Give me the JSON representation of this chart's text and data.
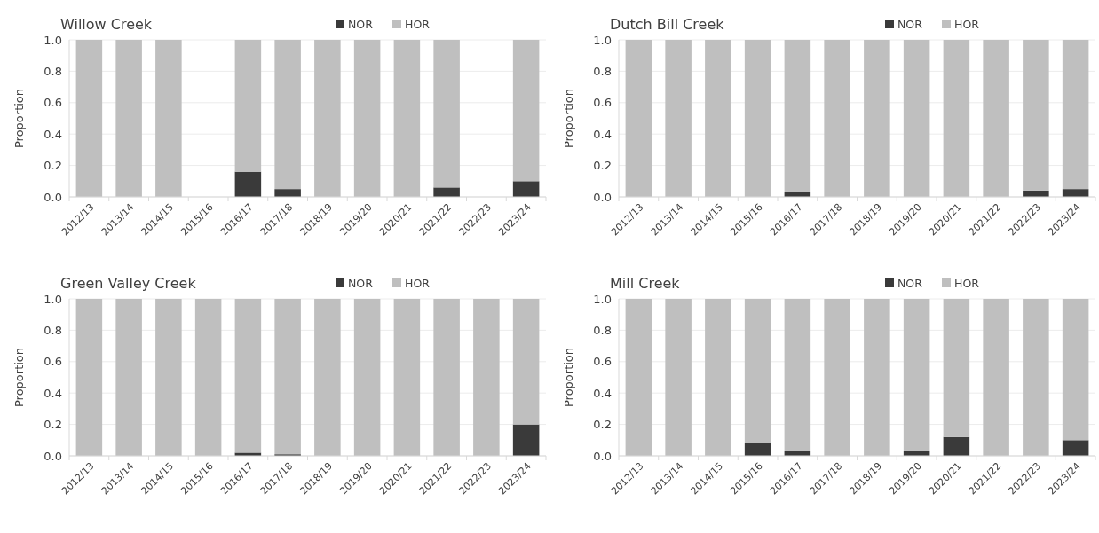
{
  "chart_data": [
    {
      "type": "bar",
      "title": "Willow Creek",
      "ylabel": "Proportion",
      "stacked": true,
      "legend": "top",
      "grid": "y",
      "ylim": [
        0,
        1
      ],
      "yticks": [
        {
          "value": 0,
          "label": "0.0"
        },
        {
          "value": 0.2,
          "label": "0.2"
        },
        {
          "value": 0.4,
          "label": "0.4"
        },
        {
          "value": 0.6,
          "label": "0.6"
        },
        {
          "value": 0.8,
          "label": "0.8"
        },
        {
          "value": 1,
          "label": "1.0"
        }
      ],
      "categories": [
        "2012/13",
        "2013/14",
        "2014/15",
        "2015/16",
        "2016/17",
        "2017/18",
        "2018/19",
        "2019/20",
        "2020/21",
        "2021/22",
        "2022/23",
        "2023/24"
      ],
      "series": [
        {
          "name": "NOR",
          "color": "#3a3a3a",
          "values": [
            0,
            0,
            0,
            null,
            0.16,
            0.05,
            0,
            0,
            0,
            0.06,
            null,
            0.1
          ]
        },
        {
          "name": "HOR",
          "color": "#bfbfbf",
          "values": [
            1,
            1,
            1,
            null,
            0.84,
            0.95,
            1,
            1,
            1,
            0.94,
            null,
            0.9
          ]
        }
      ]
    },
    {
      "type": "bar",
      "title": "Dutch Bill Creek",
      "ylabel": "Proportion",
      "stacked": true,
      "legend": "top",
      "grid": "y",
      "ylim": [
        0,
        1
      ],
      "yticks": [
        {
          "value": 0,
          "label": "0.0"
        },
        {
          "value": 0.2,
          "label": "0.2"
        },
        {
          "value": 0.4,
          "label": "0.4"
        },
        {
          "value": 0.6,
          "label": "0.6"
        },
        {
          "value": 0.8,
          "label": "0.8"
        },
        {
          "value": 1,
          "label": "1.0"
        }
      ],
      "categories": [
        "2012/13",
        "2013/14",
        "2014/15",
        "2015/16",
        "2016/17",
        "2017/18",
        "2018/19",
        "2019/20",
        "2020/21",
        "2021/22",
        "2022/23",
        "2023/24"
      ],
      "series": [
        {
          "name": "NOR",
          "color": "#3a3a3a",
          "values": [
            0,
            0,
            0,
            0,
            0.03,
            0,
            0,
            0,
            0,
            0,
            0.04,
            0.05
          ]
        },
        {
          "name": "HOR",
          "color": "#bfbfbf",
          "values": [
            1,
            1,
            1,
            1,
            0.97,
            1,
            1,
            1,
            1,
            1,
            0.96,
            0.95
          ]
        }
      ]
    },
    {
      "type": "bar",
      "title": "Green Valley Creek",
      "ylabel": "Proportion",
      "stacked": true,
      "legend": "top",
      "grid": "y",
      "ylim": [
        0,
        1
      ],
      "yticks": [
        {
          "value": 0,
          "label": "0.0"
        },
        {
          "value": 0.2,
          "label": "0.2"
        },
        {
          "value": 0.4,
          "label": "0.4"
        },
        {
          "value": 0.6,
          "label": "0.6"
        },
        {
          "value": 0.8,
          "label": "0.8"
        },
        {
          "value": 1,
          "label": "1.0"
        }
      ],
      "categories": [
        "2012/13",
        "2013/14",
        "2014/15",
        "2015/16",
        "2016/17",
        "2017/18",
        "2018/19",
        "2019/20",
        "2020/21",
        "2021/22",
        "2022/23",
        "2023/24"
      ],
      "series": [
        {
          "name": "NOR",
          "color": "#3a3a3a",
          "values": [
            0,
            0,
            0,
            0,
            0.02,
            0.01,
            0,
            0,
            0,
            0,
            0,
            0.2
          ]
        },
        {
          "name": "HOR",
          "color": "#bfbfbf",
          "values": [
            1,
            1,
            1,
            1,
            0.98,
            0.99,
            1,
            1,
            1,
            1,
            1,
            0.8
          ]
        }
      ]
    },
    {
      "type": "bar",
      "title": "Mill Creek",
      "ylabel": "Proportion",
      "stacked": true,
      "legend": "top",
      "grid": "y",
      "ylim": [
        0,
        1
      ],
      "yticks": [
        {
          "value": 0,
          "label": "0.0"
        },
        {
          "value": 0.2,
          "label": "0.2"
        },
        {
          "value": 0.4,
          "label": "0.4"
        },
        {
          "value": 0.6,
          "label": "0.6"
        },
        {
          "value": 0.8,
          "label": "0.8"
        },
        {
          "value": 1,
          "label": "1.0"
        }
      ],
      "categories": [
        "2012/13",
        "2013/14",
        "2014/15",
        "2015/16",
        "2016/17",
        "2017/18",
        "2018/19",
        "2019/20",
        "2020/21",
        "2021/22",
        "2022/23",
        "2023/24"
      ],
      "series": [
        {
          "name": "NOR",
          "color": "#3a3a3a",
          "values": [
            0,
            0,
            0,
            0.08,
            0.03,
            0,
            0,
            0.03,
            0.12,
            0,
            0,
            0.1
          ]
        },
        {
          "name": "HOR",
          "color": "#bfbfbf",
          "values": [
            1,
            1,
            1,
            0.92,
            0.97,
            1,
            1,
            0.97,
            0.88,
            1,
            1,
            0.9
          ]
        }
      ]
    }
  ]
}
